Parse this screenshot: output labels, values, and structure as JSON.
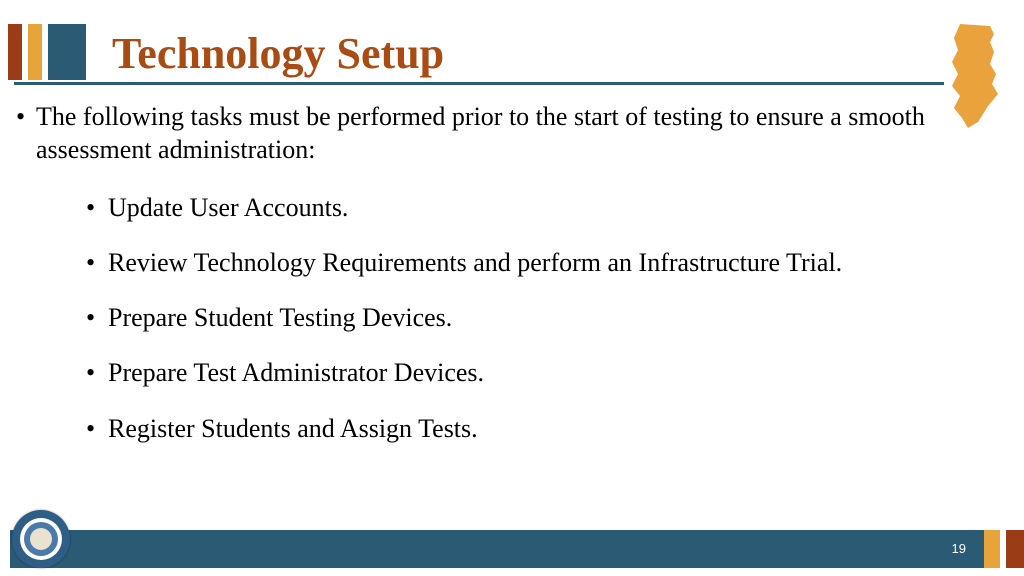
{
  "colors": {
    "title": "#a84c13",
    "underline": "#2a5a74",
    "bar_dark": "#9a3d16",
    "bar_gold": "#e7a43a",
    "bar_navy": "#2a5a74",
    "nj_fill": "#eaa23c",
    "nj_stroke": "#9a5a14",
    "footer_blue": "#2a5a74",
    "footer_bar_gold": "#e7a43a",
    "footer_bar_brown": "#9a3d16",
    "seal_outer": "#2e5e86",
    "seal_mid": "#4a7aa8"
  },
  "title": "Technology Setup",
  "lead": "The following tasks must be performed prior to the start of testing to ensure a smooth assessment administration:",
  "items": [
    "Update User Accounts.",
    "Review Technology Requirements and perform an Infrastructure Trial.",
    "Prepare Student Testing Devices.",
    "Prepare Test Administrator Devices.",
    "Register Students and Assign Tests."
  ],
  "page_number": "19",
  "top_bars": [
    {
      "w": 14,
      "colorKey": "bar_dark"
    },
    {
      "w": 6,
      "colorKey": "white"
    },
    {
      "w": 14,
      "colorKey": "bar_gold"
    },
    {
      "w": 6,
      "colorKey": "white"
    },
    {
      "w": 38,
      "colorKey": "bar_navy"
    }
  ],
  "footer_end_bars": [
    {
      "w": 16,
      "colorKey": "footer_bar_gold"
    },
    {
      "w": 6,
      "colorKey": "white"
    },
    {
      "w": 18,
      "colorKey": "footer_bar_brown"
    }
  ]
}
